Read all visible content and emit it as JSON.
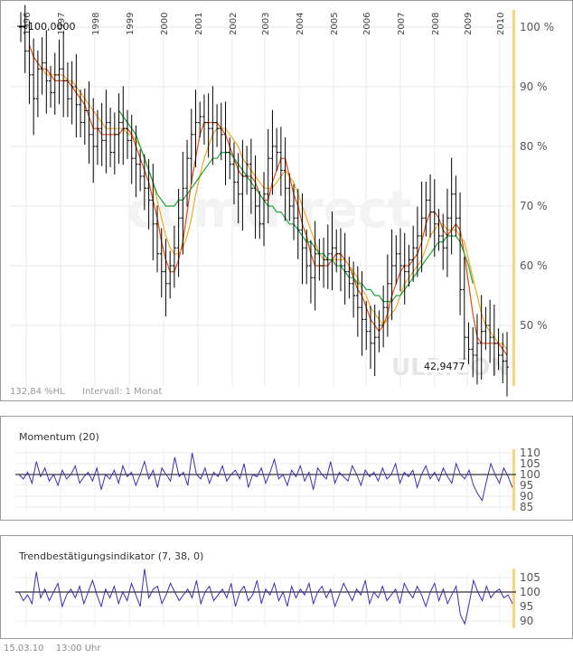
{
  "chart_data": [
    {
      "type": "ohlc",
      "years": [
        "1996",
        "1997",
        "1998",
        "1999",
        "2000",
        "2001",
        "2002",
        "2003",
        "2004",
        "2005",
        "2006",
        "2007",
        "2008",
        "2009",
        "2010"
      ],
      "y_tick_labels": [
        "100 %",
        "90 %",
        "80 %",
        "70 %",
        "60 %",
        "50 %"
      ],
      "y_ticks": [
        100,
        90,
        80,
        70,
        60,
        50
      ],
      "ylim": [
        40,
        101
      ],
      "start_label": "100,0000",
      "end_label": "42,9477",
      "hl_label": "132,84 %HL",
      "interval_label": "Intervall: 1 Monat",
      "watermark": "comdirect",
      "symbol": "ULR.CON",
      "closes": [
        100,
        96,
        92,
        88,
        93,
        94,
        91,
        89,
        92,
        93,
        91,
        88,
        90,
        87,
        84,
        86,
        82,
        80,
        83,
        81,
        84,
        79,
        82,
        84,
        83,
        81,
        78,
        77,
        75,
        73,
        71,
        67,
        62,
        59,
        57,
        60,
        63,
        68,
        73,
        78,
        82,
        84,
        85,
        84,
        83,
        84,
        83,
        82,
        79,
        77,
        74,
        72,
        75,
        77,
        73,
        70,
        67,
        72,
        78,
        80,
        79,
        76,
        73,
        70,
        68,
        66,
        63,
        60,
        58,
        62,
        60,
        61,
        62,
        63,
        62,
        60,
        59,
        57,
        55,
        53,
        51,
        49,
        47,
        48,
        50,
        53,
        57,
        60,
        62,
        60,
        59,
        61,
        63,
        65,
        68,
        71,
        69,
        67,
        65,
        63,
        68,
        72,
        68,
        56,
        48,
        46,
        45,
        47,
        49,
        50,
        48,
        47,
        45,
        44,
        43
      ],
      "series": [
        {
          "name": "ma_short",
          "color": "#e24a10",
          "values": [
            null,
            null,
            97,
            95,
            94,
            93,
            93,
            92,
            91,
            91,
            91,
            91,
            90,
            89,
            88,
            87,
            85,
            83,
            83,
            82,
            82,
            82,
            82,
            82,
            83,
            83,
            82,
            80,
            78,
            76,
            74,
            71,
            68,
            64,
            61,
            59,
            59,
            61,
            64,
            69,
            74,
            78,
            82,
            84,
            84,
            84,
            84,
            83,
            82,
            80,
            78,
            76,
            75,
            75,
            75,
            74,
            72,
            71,
            71,
            74,
            76,
            78,
            78,
            75,
            72,
            70,
            67,
            65,
            62,
            60,
            60,
            60,
            60,
            61,
            62,
            62,
            61,
            60,
            58,
            56,
            55,
            53,
            51,
            50,
            49,
            50,
            52,
            55,
            57,
            59,
            60,
            60,
            61,
            62,
            64,
            67,
            69,
            69,
            68,
            66,
            65,
            66,
            67,
            66,
            62,
            57,
            52,
            48,
            47,
            47,
            47,
            47,
            47,
            46,
            45
          ]
        },
        {
          "name": "ma_mid",
          "color": "#f5a623",
          "values": [
            null,
            null,
            null,
            null,
            null,
            93,
            92,
            92,
            92,
            92,
            92,
            91,
            91,
            90,
            89,
            88,
            87,
            86,
            85,
            84,
            83,
            83,
            83,
            83,
            83,
            82,
            82,
            81,
            80,
            78,
            76,
            74,
            71,
            68,
            65,
            63,
            62,
            62,
            63,
            65,
            68,
            72,
            75,
            78,
            80,
            82,
            83,
            83,
            83,
            82,
            81,
            80,
            78,
            77,
            76,
            75,
            74,
            73,
            73,
            73,
            74,
            75,
            76,
            75,
            74,
            72,
            70,
            68,
            66,
            64,
            62,
            61,
            61,
            61,
            61,
            61,
            61,
            60,
            59,
            58,
            56,
            55,
            53,
            52,
            51,
            50,
            51,
            52,
            53,
            55,
            57,
            58,
            59,
            60,
            61,
            63,
            65,
            66,
            67,
            67,
            66,
            66,
            66,
            65,
            64,
            61,
            58,
            55,
            52,
            50,
            49,
            48,
            47,
            47,
            46
          ]
        },
        {
          "name": "ma_long",
          "color": "#19a83b",
          "values": [
            null,
            null,
            null,
            null,
            null,
            null,
            null,
            null,
            null,
            null,
            null,
            null,
            null,
            null,
            null,
            null,
            null,
            null,
            null,
            null,
            null,
            null,
            null,
            86,
            85,
            84,
            83,
            82,
            80,
            78,
            76,
            74,
            72,
            71,
            70,
            70,
            70,
            71,
            71,
            72,
            73,
            74,
            75,
            76,
            77,
            78,
            78,
            79,
            79,
            79,
            78,
            77,
            76,
            75,
            74,
            73,
            72,
            71,
            70,
            70,
            69,
            69,
            68,
            67,
            67,
            66,
            65,
            64,
            64,
            63,
            62,
            62,
            61,
            61,
            60,
            60,
            59,
            58,
            58,
            57,
            57,
            56,
            56,
            55,
            55,
            54,
            54,
            54,
            55,
            55,
            56,
            57,
            58,
            59,
            60,
            61,
            62,
            63,
            64,
            64,
            65,
            65,
            65,
            64,
            62,
            60,
            57
          ]
        }
      ]
    },
    {
      "type": "line",
      "title": "Momentum (20)",
      "y_ticks": [
        110,
        105,
        100,
        95,
        90,
        85
      ],
      "baseline": 100,
      "color": "#3d2db5",
      "values": [
        100,
        98,
        101,
        96,
        106,
        99,
        103,
        97,
        100,
        95,
        102,
        98,
        100,
        104,
        96,
        99,
        101,
        97,
        103,
        93,
        100,
        98,
        102,
        96,
        104,
        99,
        101,
        95,
        100,
        106,
        98,
        102,
        94,
        103,
        100,
        97,
        108,
        99,
        101,
        95,
        110,
        100,
        98,
        103,
        96,
        101,
        99,
        104,
        97,
        100,
        102,
        98,
        105,
        94,
        100,
        99,
        103,
        96,
        101,
        107,
        98,
        100,
        95,
        102,
        99,
        104,
        97,
        101,
        93,
        103,
        100,
        98,
        106,
        96,
        101,
        99,
        97,
        104,
        100,
        95,
        102,
        99,
        101,
        97,
        103,
        98,
        100,
        105,
        96,
        101,
        99,
        102,
        94,
        100,
        104,
        98,
        101,
        97,
        103,
        99,
        96,
        105,
        100,
        98,
        102,
        95,
        91,
        88,
        97,
        105,
        100,
        96,
        103,
        99,
        94
      ]
    },
    {
      "type": "line",
      "title": "Trendbestätigungsindikator (7, 38, 0)",
      "y_ticks": [
        105,
        100,
        95,
        90
      ],
      "baseline": 100,
      "color": "#3d2db5",
      "values": [
        100,
        97,
        99,
        96,
        107,
        98,
        101,
        97,
        100,
        103,
        95,
        99,
        101,
        98,
        102,
        96,
        100,
        104,
        99,
        95,
        101,
        98,
        102,
        96,
        100,
        97,
        103,
        99,
        95,
        108,
        98,
        101,
        102,
        96,
        99,
        103,
        100,
        97,
        99,
        101,
        98,
        104,
        96,
        100,
        102,
        97,
        99,
        101,
        98,
        103,
        95,
        100,
        102,
        97,
        99,
        104,
        96,
        101,
        99,
        103,
        97,
        100,
        95,
        102,
        98,
        101,
        99,
        103,
        96,
        100,
        102,
        98,
        101,
        95,
        99,
        103,
        100,
        97,
        101,
        99,
        104,
        96,
        100,
        98,
        102,
        97,
        99,
        101,
        96,
        103,
        100,
        98,
        102,
        99,
        95,
        100,
        103,
        97,
        101,
        96,
        99,
        102,
        92,
        89,
        96,
        104,
        100,
        97,
        102,
        98,
        100,
        101,
        98,
        99,
        96
      ]
    }
  ],
  "footer": {
    "date": "15.03.10",
    "time": "13:00 Uhr"
  }
}
